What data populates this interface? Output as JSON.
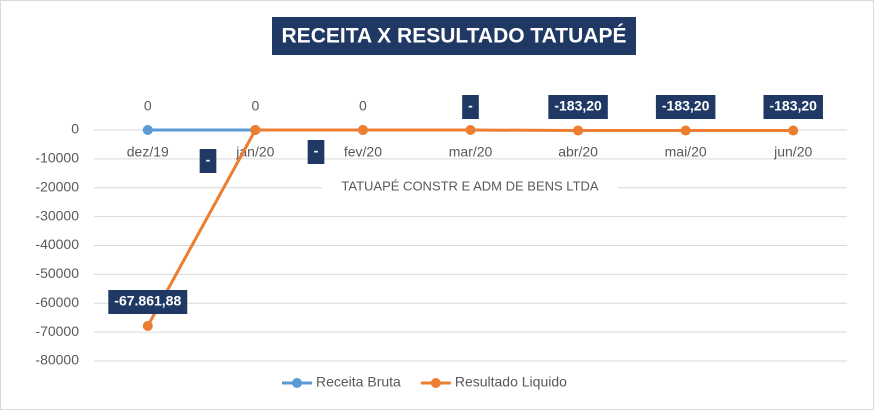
{
  "chart_data": {
    "type": "line",
    "title": "RECEITA X RESULTADO TATUAPÉ",
    "x_label": "TATUAPÉ CONSTR E ADM DE BENS LTDA",
    "categories": [
      "dez/19",
      "jan/20",
      "fev/20",
      "mar/20",
      "abr/20",
      "mai/20",
      "jun/20"
    ],
    "series": [
      {
        "name": "Receita Bruta",
        "color": "#5b9bd5",
        "values": [
          0,
          0,
          0,
          null,
          null,
          null,
          null
        ]
      },
      {
        "name": "Resultado Liquido",
        "color": "#ed7d31",
        "values": [
          -67861.88,
          0,
          0,
          0,
          -183.2,
          -183.2,
          -183.2
        ],
        "value_labels": [
          "-67.861,88",
          "-",
          "-",
          "-",
          "-183,20",
          "-183,20",
          "-183,20"
        ]
      }
    ],
    "ylim": [
      -80000,
      0
    ],
    "yticks": [
      0,
      -10000,
      -20000,
      -30000,
      -40000,
      -50000,
      -60000,
      -70000,
      -80000
    ],
    "grid": true,
    "legend": "bottom"
  }
}
